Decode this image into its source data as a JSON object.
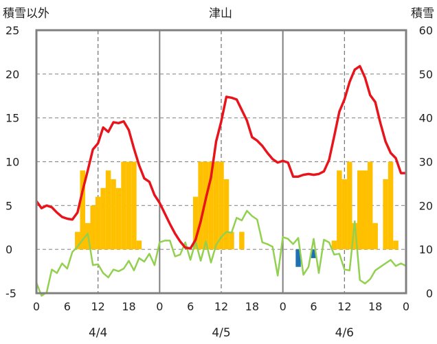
{
  "chart_data": {
    "type": "bar+line",
    "title": "津山",
    "left_axis_label": "積雪以外",
    "right_axis_label": "積雪",
    "left_ylim": [
      -5,
      25
    ],
    "left_ticks": [
      -5,
      0,
      5,
      10,
      15,
      20,
      25
    ],
    "right_ylim": [
      0,
      60
    ],
    "right_ticks": [
      0,
      10,
      20,
      30,
      40,
      50,
      60
    ],
    "x_hours_total": 72,
    "x_tick_values": [
      0,
      6,
      12,
      18,
      24,
      30,
      36,
      42,
      48,
      54,
      60,
      66,
      72
    ],
    "x_tick_labels": [
      "0",
      "6",
      "12",
      "18",
      "0",
      "6",
      "12",
      "18",
      "0",
      "6",
      "12",
      "18",
      "0"
    ],
    "day_separators": [
      24,
      48
    ],
    "noon_dashed_lines": [
      12,
      36,
      60
    ],
    "grid": "horizontal-dashed",
    "date_labels": [
      {
        "hour": 12,
        "text": "4/4"
      },
      {
        "hour": 36,
        "text": "4/5"
      },
      {
        "hour": 60,
        "text": "4/6"
      }
    ],
    "colors": {
      "precip_bar": "#FFC000",
      "temperature_line": "#E8141B",
      "other_line": "#92D050",
      "negative_bar": "#1F6FB5",
      "snow_line": "#7030A0",
      "frame": "#808080"
    },
    "precip_bars": [
      0,
      0,
      0,
      0,
      0,
      0,
      0,
      0,
      2,
      9,
      3,
      5,
      6,
      7,
      9,
      8,
      7,
      10,
      10,
      10,
      1,
      0,
      0,
      0,
      0,
      0,
      0,
      0,
      0,
      0,
      0,
      6,
      10,
      10,
      10,
      10,
      10,
      8,
      2,
      0,
      2,
      0,
      0,
      0,
      0,
      0,
      0,
      0,
      0,
      0,
      0,
      0,
      0,
      0,
      0,
      0,
      0,
      0,
      1,
      9,
      8,
      10,
      3,
      9,
      9,
      10,
      3,
      0,
      8,
      10,
      1,
      0
    ],
    "negative_bars": [
      {
        "hour": 51,
        "value": -2
      },
      {
        "hour": 54,
        "value": -1
      }
    ],
    "temperature": [
      5.5,
      4.7,
      5.0,
      4.8,
      4.2,
      3.7,
      3.5,
      3.4,
      4.2,
      6.7,
      9.0,
      11.4,
      12.1,
      13.9,
      13.4,
      14.5,
      14.4,
      14.6,
      13.6,
      11.5,
      9.6,
      8.1,
      7.7,
      6.2,
      5.3,
      4.1,
      2.9,
      1.8,
      0.9,
      0.2,
      0.1,
      1.1,
      3.2,
      5.8,
      8.2,
      12.3,
      14.6,
      17.4,
      17.3,
      17.1,
      15.9,
      14.7,
      12.8,
      12.4,
      11.8,
      11.0,
      10.3,
      9.9,
      10.1,
      9.9,
      8.3,
      8.3,
      8.5,
      8.6,
      8.5,
      8.6,
      8.9,
      10.2,
      12.9,
      15.7,
      17.1,
      19.1,
      20.5,
      20.9,
      19.6,
      17.6,
      16.8,
      14.4,
      12.3,
      11.0,
      10.4,
      8.7,
      8.7
    ],
    "other": [
      -3.8,
      -5.3,
      -4.9,
      -2.3,
      -2.7,
      -1.6,
      -2.2,
      -0.3,
      0.3,
      1.1,
      1.8,
      -1.8,
      -1.7,
      -2.7,
      -3.2,
      -2.3,
      -2.5,
      -2.2,
      -1.3,
      -2.4,
      -1.0,
      -1.4,
      -0.5,
      -1.8,
      0.8,
      1.0,
      1.0,
      -0.8,
      -0.6,
      0.8,
      -1.2,
      0.9,
      -1.3,
      0.9,
      -1.5,
      0.5,
      1.4,
      2.0,
      1.9,
      3.6,
      3.3,
      4.4,
      3.8,
      3.4,
      0.8,
      0.6,
      0.3,
      -3.0,
      1.4,
      1.2,
      0.6,
      1.3,
      -2.9,
      -2.0,
      1.2,
      -2.7,
      1.1,
      0.8,
      -0.6,
      -0.5,
      -2.3,
      -2.4,
      3.2,
      -3.5,
      -3.9,
      -3.4,
      -2.4,
      -2.0,
      -1.6,
      -1.2,
      -1.9,
      -1.6,
      -1.9
    ],
    "snow_depth": [
      0,
      0,
      0,
      0,
      0,
      0,
      0,
      0,
      0,
      0,
      0,
      0,
      0,
      0,
      0,
      0,
      0,
      0,
      0,
      0,
      0,
      0,
      0,
      0,
      0,
      0,
      0,
      0,
      0,
      0,
      0,
      0,
      0,
      0,
      0,
      0,
      0,
      0,
      0,
      0,
      0,
      0,
      0,
      0,
      0,
      0,
      0,
      0,
      0,
      0,
      0,
      0,
      0,
      0,
      0,
      0,
      0,
      0,
      0,
      0,
      0,
      0,
      0,
      0,
      0,
      0,
      0,
      0,
      0,
      0,
      0,
      0,
      0
    ]
  }
}
